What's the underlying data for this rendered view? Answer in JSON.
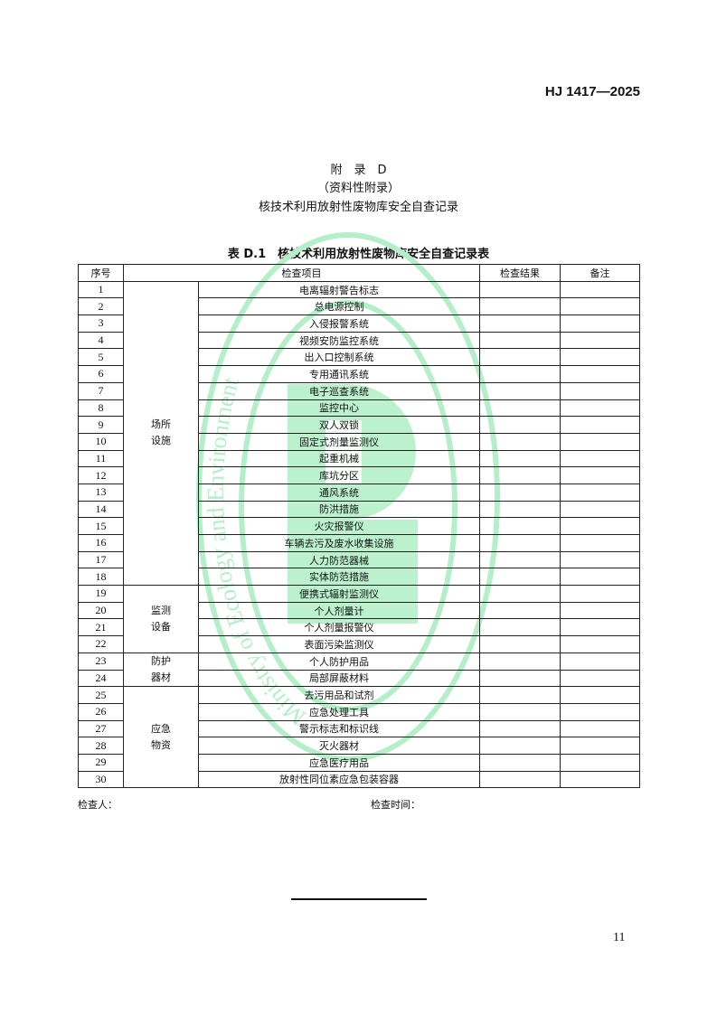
{
  "header": {
    "standard_code": "HJ 1417—2025"
  },
  "title": {
    "appendix": "附　录　D",
    "type": "（资料性附录）",
    "name": "核技术利用放射性废物库安全自查记录"
  },
  "table": {
    "caption": "表 D.1　核技术利用放射性废物库安全自查记录表",
    "headers": {
      "no": "序号",
      "item": "检查项目",
      "result": "检查结果",
      "note": "备注"
    },
    "groups": [
      {
        "label": "场所\n设施",
        "items": [
          "电离辐射警告标志",
          "总电源控制",
          "入侵报警系统",
          "视频安防监控系统",
          "出入口控制系统",
          "专用通讯系统",
          "电子巡查系统",
          "监控中心",
          "双人双锁",
          "固定式剂量监测仪",
          "起重机械",
          "库坑分区",
          "通风系统",
          "防洪措施",
          "火灾报警仪",
          "车辆去污及废水收集设施",
          "人力防范器械",
          "实体防范措施"
        ]
      },
      {
        "label": "监测\n设备",
        "items": [
          "便携式辐射监测仪",
          "个人剂量计",
          "个人剂量报警仪",
          "表面污染监测仪"
        ]
      },
      {
        "label": "防护\n器材",
        "items": [
          "个人防护用品",
          "局部屏蔽材料"
        ]
      },
      {
        "label": "应急\n物资",
        "items": [
          "去污用品和试剂",
          "应急处理工具",
          "警示标志和标识线",
          "灭火器材",
          "应急医疗用品",
          "放射性同位素应急包装容器"
        ]
      }
    ]
  },
  "footer": {
    "inspector_label": "检查人：",
    "time_label": "检查时间：",
    "page_number": "11"
  },
  "watermark": {
    "text": "Ministry of Ecology and Environment",
    "color": "#b5efc9"
  }
}
